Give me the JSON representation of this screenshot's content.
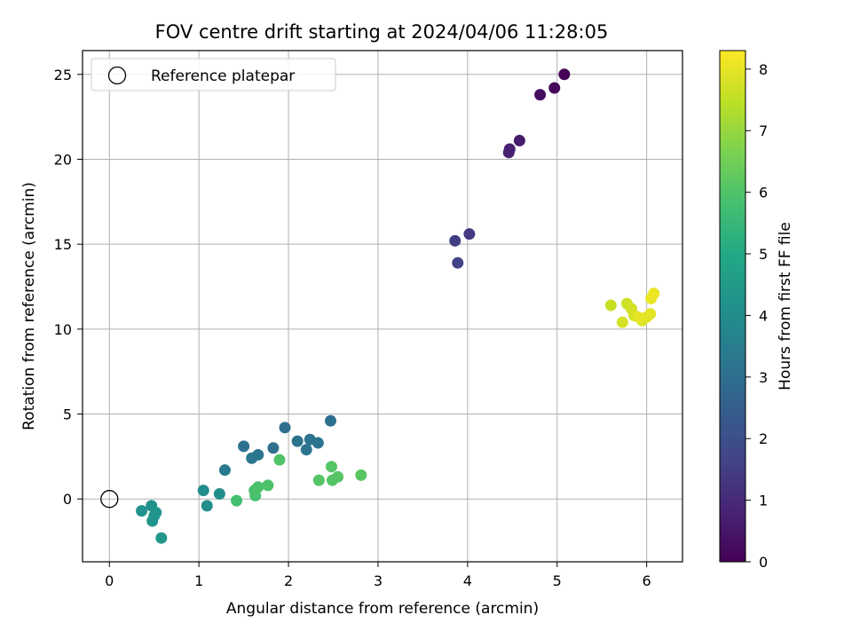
{
  "chart_data": {
    "type": "scatter",
    "title": "FOV centre drift starting at 2024/04/06 11:28:05",
    "xlabel": "Angular distance from reference (arcmin)",
    "ylabel": "Rotation from reference (arcmin)",
    "xlim": [
      -0.3,
      6.4
    ],
    "ylim": [
      -3.7,
      26.4
    ],
    "xticks": [
      0,
      1,
      2,
      3,
      4,
      5,
      6
    ],
    "yticks": [
      0,
      5,
      10,
      15,
      20,
      25
    ],
    "grid": true,
    "legend": {
      "placement": "top-left",
      "entries": [
        {
          "label": "Reference platepar",
          "marker": "hollow-circle",
          "x": 0,
          "y": 0
        }
      ]
    },
    "colorbar": {
      "label": "Hours from first FF file",
      "colormap": "viridis",
      "range": [
        0,
        8.3
      ],
      "ticks": [
        0,
        1,
        2,
        3,
        4,
        5,
        6,
        7,
        8
      ]
    },
    "points": [
      {
        "x": 5.08,
        "y": 25.0,
        "t": 0.05
      },
      {
        "x": 4.97,
        "y": 24.2,
        "t": 0.2
      },
      {
        "x": 4.81,
        "y": 23.8,
        "t": 0.3
      },
      {
        "x": 4.58,
        "y": 21.1,
        "t": 0.6
      },
      {
        "x": 4.47,
        "y": 20.6,
        "t": 0.7
      },
      {
        "x": 4.46,
        "y": 20.4,
        "t": 0.75
      },
      {
        "x": 4.02,
        "y": 15.6,
        "t": 1.4
      },
      {
        "x": 3.86,
        "y": 15.2,
        "t": 1.5
      },
      {
        "x": 3.89,
        "y": 13.9,
        "t": 1.6
      },
      {
        "x": 2.47,
        "y": 4.6,
        "t": 3.0
      },
      {
        "x": 1.96,
        "y": 4.2,
        "t": 3.05
      },
      {
        "x": 1.5,
        "y": 3.1,
        "t": 3.1
      },
      {
        "x": 1.83,
        "y": 3.0,
        "t": 3.1
      },
      {
        "x": 2.24,
        "y": 3.5,
        "t": 3.15
      },
      {
        "x": 2.1,
        "y": 3.4,
        "t": 3.15
      },
      {
        "x": 2.33,
        "y": 3.3,
        "t": 3.2
      },
      {
        "x": 2.2,
        "y": 2.9,
        "t": 3.2
      },
      {
        "x": 1.66,
        "y": 2.6,
        "t": 3.25
      },
      {
        "x": 1.59,
        "y": 2.4,
        "t": 3.3
      },
      {
        "x": 1.29,
        "y": 1.7,
        "t": 3.4
      },
      {
        "x": 1.05,
        "y": 0.5,
        "t": 4.0
      },
      {
        "x": 1.23,
        "y": 0.3,
        "t": 4.05
      },
      {
        "x": 1.09,
        "y": -0.4,
        "t": 4.1
      },
      {
        "x": 0.47,
        "y": -0.4,
        "t": 4.15
      },
      {
        "x": 0.36,
        "y": -0.7,
        "t": 4.2
      },
      {
        "x": 0.52,
        "y": -0.8,
        "t": 4.25
      },
      {
        "x": 0.5,
        "y": -1.0,
        "t": 4.3
      },
      {
        "x": 0.48,
        "y": -1.3,
        "t": 4.3
      },
      {
        "x": 0.58,
        "y": -2.3,
        "t": 4.35
      },
      {
        "x": 1.42,
        "y": -0.1,
        "t": 5.8
      },
      {
        "x": 1.63,
        "y": 0.2,
        "t": 5.85
      },
      {
        "x": 1.62,
        "y": 0.5,
        "t": 5.9
      },
      {
        "x": 1.66,
        "y": 0.7,
        "t": 5.9
      },
      {
        "x": 1.77,
        "y": 0.8,
        "t": 5.95
      },
      {
        "x": 1.9,
        "y": 2.3,
        "t": 6.0
      },
      {
        "x": 2.34,
        "y": 1.1,
        "t": 6.05
      },
      {
        "x": 2.49,
        "y": 1.1,
        "t": 6.05
      },
      {
        "x": 2.55,
        "y": 1.3,
        "t": 6.1
      },
      {
        "x": 2.48,
        "y": 1.9,
        "t": 6.1
      },
      {
        "x": 2.81,
        "y": 1.4,
        "t": 6.15
      },
      {
        "x": 5.6,
        "y": 11.4,
        "t": 7.6
      },
      {
        "x": 5.78,
        "y": 11.5,
        "t": 7.7
      },
      {
        "x": 5.83,
        "y": 11.2,
        "t": 7.75
      },
      {
        "x": 5.86,
        "y": 10.8,
        "t": 7.8
      },
      {
        "x": 5.73,
        "y": 10.4,
        "t": 7.8
      },
      {
        "x": 5.95,
        "y": 10.5,
        "t": 7.85
      },
      {
        "x": 6.0,
        "y": 10.7,
        "t": 7.9
      },
      {
        "x": 6.04,
        "y": 10.9,
        "t": 7.95
      },
      {
        "x": 5.91,
        "y": 10.7,
        "t": 8.0
      },
      {
        "x": 6.05,
        "y": 11.8,
        "t": 8.05
      },
      {
        "x": 6.08,
        "y": 12.1,
        "t": 8.1
      }
    ]
  }
}
